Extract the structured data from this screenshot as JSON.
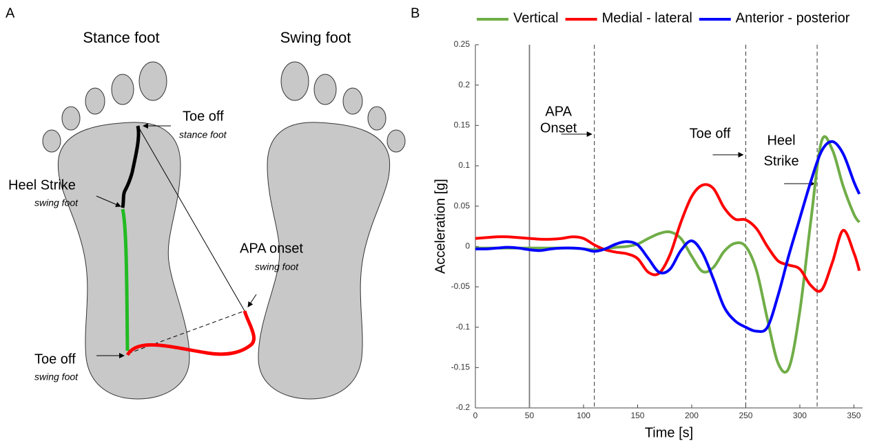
{
  "panel_a": {
    "label": "A",
    "feet": [
      "Stance foot",
      "Swing foot"
    ],
    "events": [
      {
        "name": "Toe off",
        "foot": "stance foot"
      },
      {
        "name": "Heel Strike",
        "foot": "swing foot"
      },
      {
        "name": "APA onset",
        "foot": "swing foot"
      },
      {
        "name": "Toe off",
        "foot": "swing foot"
      }
    ]
  },
  "chart_data": {
    "type": "line",
    "panel_label": "B",
    "xlabel": "Time [s]",
    "ylabel": "Acceleration [g]",
    "x": [
      0,
      10,
      20,
      30,
      40,
      50,
      60,
      70,
      80,
      90,
      100,
      110,
      120,
      130,
      140,
      150,
      160,
      170,
      180,
      190,
      200,
      210,
      220,
      230,
      240,
      250,
      260,
      270,
      280,
      290,
      300,
      310,
      320,
      330,
      340,
      350,
      355
    ],
    "series": [
      {
        "name": "Vertical",
        "color": "#70ad47",
        "values": [
          -0.002,
          -0.002,
          -0.002,
          -0.002,
          -0.002,
          -0.002,
          -0.002,
          -0.002,
          -0.002,
          -0.002,
          -0.003,
          -0.004,
          -0.003,
          -0.001,
          0,
          0.003,
          0.01,
          0.016,
          0.018,
          0.01,
          -0.012,
          -0.031,
          -0.026,
          -0.006,
          0.004,
          0,
          -0.03,
          -0.09,
          -0.145,
          -0.15,
          -0.08,
          0.03,
          0.13,
          0.12,
          0.075,
          0.04,
          0.03
        ]
      },
      {
        "name": "Medial - lateral",
        "color": "#ff0000",
        "values": [
          0.01,
          0.011,
          0.012,
          0.012,
          0.011,
          0.01,
          0.009,
          0.009,
          0.01,
          0.012,
          0.01,
          0.002,
          -0.004,
          -0.007,
          -0.009,
          -0.015,
          -0.032,
          -0.033,
          -0.01,
          0.03,
          0.062,
          0.076,
          0.072,
          0.048,
          0.034,
          0.033,
          0.022,
          0,
          -0.018,
          -0.023,
          -0.028,
          -0.048,
          -0.054,
          -0.02,
          0.02,
          -0.008,
          -0.03
        ]
      },
      {
        "name": "Anterior - posterior",
        "color": "#0000ff",
        "values": [
          -0.003,
          -0.003,
          -0.002,
          -0.001,
          -0.002,
          -0.004,
          -0.005,
          -0.003,
          -0.002,
          -0.002,
          -0.003,
          -0.006,
          -0.003,
          0.003,
          0.006,
          0.002,
          -0.015,
          -0.032,
          -0.028,
          -0.005,
          0.007,
          -0.008,
          -0.04,
          -0.075,
          -0.092,
          -0.1,
          -0.105,
          -0.1,
          -0.06,
          -0.01,
          0.035,
          0.08,
          0.118,
          0.13,
          0.115,
          0.08,
          0.065
        ]
      }
    ],
    "xlim": [
      0,
      358
    ],
    "ylim": [
      -0.2,
      0.25
    ],
    "xticks": [
      0,
      50,
      100,
      150,
      200,
      250,
      300,
      350
    ],
    "yticks": [
      -0.2,
      -0.15,
      -0.1,
      -0.05,
      0,
      0.05,
      0.1,
      0.15,
      0.2,
      0.25
    ],
    "markers": [
      {
        "x": 50,
        "style": "solid"
      },
      {
        "x": 110,
        "style": "dashed",
        "label": [
          "APA",
          "Onset"
        ]
      },
      {
        "x": 250,
        "style": "dashed",
        "label": [
          "Toe off"
        ]
      },
      {
        "x": 316,
        "style": "dashed",
        "label": [
          "Heel",
          "Strike"
        ]
      }
    ],
    "legend": "top"
  }
}
